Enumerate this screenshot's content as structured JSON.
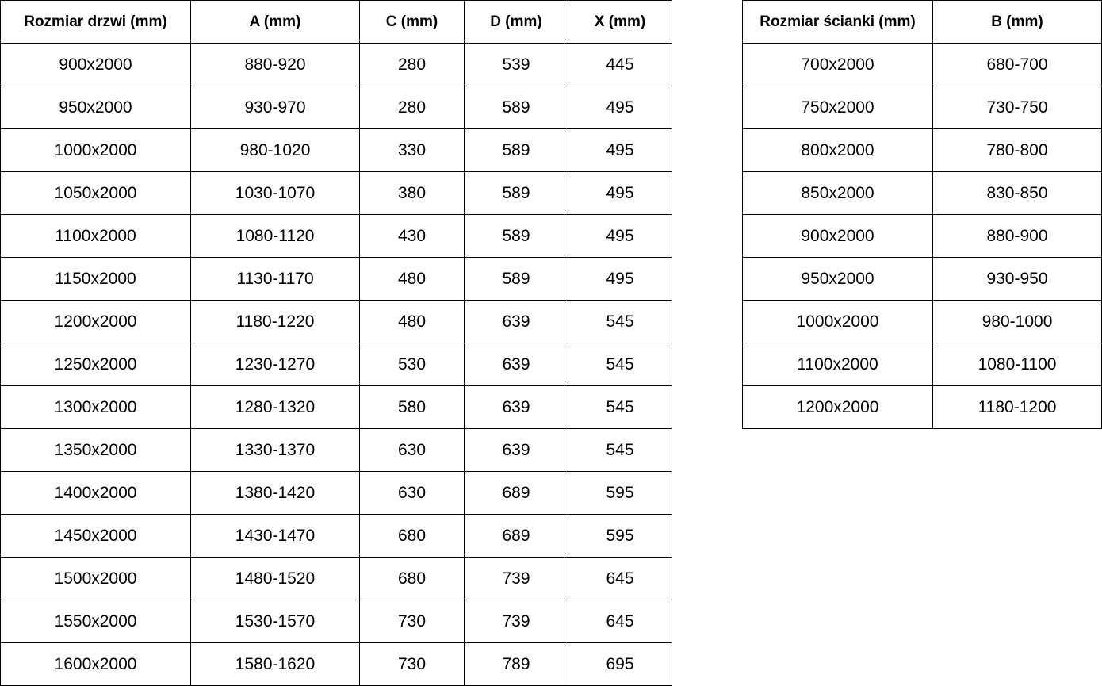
{
  "doors_table": {
    "headers": [
      "Rozmiar drzwi (mm)",
      "A (mm)",
      "C (mm)",
      "D (mm)",
      "X (mm)"
    ],
    "rows": [
      [
        "900x2000",
        "880-920",
        "280",
        "539",
        "445"
      ],
      [
        "950x2000",
        "930-970",
        "280",
        "589",
        "495"
      ],
      [
        "1000x2000",
        "980-1020",
        "330",
        "589",
        "495"
      ],
      [
        "1050x2000",
        "1030-1070",
        "380",
        "589",
        "495"
      ],
      [
        "1100x2000",
        "1080-1120",
        "430",
        "589",
        "495"
      ],
      [
        "1150x2000",
        "1130-1170",
        "480",
        "589",
        "495"
      ],
      [
        "1200x2000",
        "1180-1220",
        "480",
        "639",
        "545"
      ],
      [
        "1250x2000",
        "1230-1270",
        "530",
        "639",
        "545"
      ],
      [
        "1300x2000",
        "1280-1320",
        "580",
        "639",
        "545"
      ],
      [
        "1350x2000",
        "1330-1370",
        "630",
        "639",
        "545"
      ],
      [
        "1400x2000",
        "1380-1420",
        "630",
        "689",
        "595"
      ],
      [
        "1450x2000",
        "1430-1470",
        "680",
        "689",
        "595"
      ],
      [
        "1500x2000",
        "1480-1520",
        "680",
        "739",
        "645"
      ],
      [
        "1550x2000",
        "1530-1570",
        "730",
        "739",
        "645"
      ],
      [
        "1600x2000",
        "1580-1620",
        "730",
        "789",
        "695"
      ]
    ]
  },
  "wall_table": {
    "headers": [
      "Rozmiar ścianki (mm)",
      "B (mm)"
    ],
    "rows": [
      [
        "700x2000",
        "680-700"
      ],
      [
        "750x2000",
        "730-750"
      ],
      [
        "800x2000",
        "780-800"
      ],
      [
        "850x2000",
        "830-850"
      ],
      [
        "900x2000",
        "880-900"
      ],
      [
        "950x2000",
        "930-950"
      ],
      [
        "1000x2000",
        "980-1000"
      ],
      [
        "1100x2000",
        "1080-1100"
      ],
      [
        "1200x2000",
        "1180-1200"
      ]
    ]
  }
}
